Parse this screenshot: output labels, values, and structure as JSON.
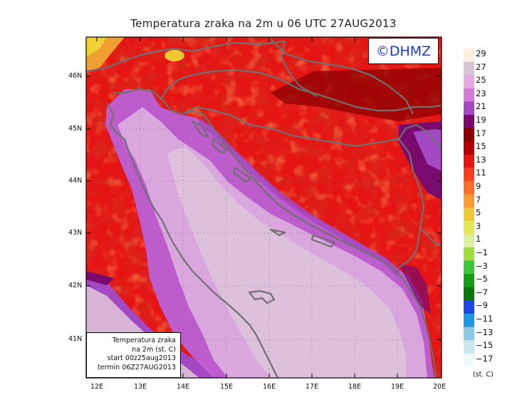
{
  "title": "Temperatura zraka na 2m u 06 UTC 27AUG2013",
  "logo": "©DHMZ",
  "info": {
    "line1": "Temperatura zraka",
    "line2": "na 2m (st. C)",
    "line3": "start 00z25aug2013",
    "line4": "termin 06Z27AUG2013"
  },
  "lat_labels": [
    "46N",
    "45N",
    "44N",
    "43N",
    "42N",
    "41N"
  ],
  "lon_labels": [
    "12E",
    "13E",
    "14E",
    "15E",
    "16E",
    "17E",
    "18E",
    "19E",
    "20E"
  ],
  "legend": {
    "unit": "(st. C)",
    "labels": [
      "29",
      "27",
      "25",
      "23",
      "21",
      "19",
      "17",
      "15",
      "13",
      "11",
      "9",
      "7",
      "5",
      "3",
      "1",
      "−1",
      "−3",
      "−5",
      "−7",
      "−9",
      "−11",
      "−13",
      "−15",
      "−17"
    ],
    "colors": [
      "#fdf0e0",
      "#d9c3d6",
      "#e6a8e0",
      "#d47ad8",
      "#a548c4",
      "#7a0a6e",
      "#8c0000",
      "#b40000",
      "#e61414",
      "#ff3c1e",
      "#ff6e28",
      "#ff9a32",
      "#f0c832",
      "#e6e650",
      "#dcf0a0",
      "#a0dc3c",
      "#3cc83c",
      "#14a014",
      "#0a780a",
      "#1e46e6",
      "#1e96e6",
      "#8cc8e6",
      "#c8e6f0",
      "#f0fafa"
    ]
  },
  "colors": {
    "land_border": "#707070",
    "sea_warm": "#d9b4d6",
    "sea_coast": "#bc5ccd"
  }
}
